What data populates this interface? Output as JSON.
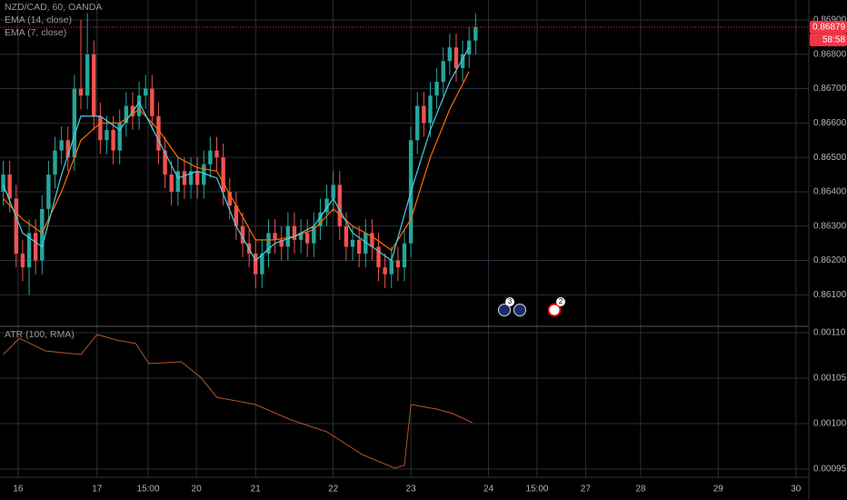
{
  "chart_data": {
    "type": "candlestick",
    "title": "NZD/CAD, 60, OANDA",
    "xlim": [
      0,
      250
    ],
    "xticks": [
      {
        "value": 5.6,
        "label": "16"
      },
      {
        "value": 30,
        "label": "17"
      },
      {
        "value": 45.8,
        "label": "15:00"
      },
      {
        "value": 60.7,
        "label": "20"
      },
      {
        "value": 79,
        "label": "21"
      },
      {
        "value": 103,
        "label": "22"
      },
      {
        "value": 127,
        "label": "23"
      },
      {
        "value": 151,
        "label": "24"
      },
      {
        "value": 166,
        "label": "15:00"
      },
      {
        "value": 181,
        "label": "27"
      },
      {
        "value": 198,
        "label": "28"
      },
      {
        "value": 222,
        "label": "29"
      },
      {
        "value": 246,
        "label": "30"
      }
    ],
    "ylim": [
      0.86011,
      0.86958
    ],
    "yticks": [
      {
        "value": 0.861,
        "label": "0.86100"
      },
      {
        "value": 0.862,
        "label": "0.86200"
      },
      {
        "value": 0.863,
        "label": "0.86300"
      },
      {
        "value": 0.864,
        "label": "0.86400"
      },
      {
        "value": 0.865,
        "label": "0.86500"
      },
      {
        "value": 0.866,
        "label": "0.86600"
      },
      {
        "value": 0.867,
        "label": "0.86700"
      },
      {
        "value": 0.868,
        "label": "0.86800"
      },
      {
        "value": 0.869,
        "label": "0.86900"
      }
    ],
    "grid": true,
    "candles": {
      "up_color": "#26a69a",
      "down_color": "#ef5350",
      "x": [
        1,
        3,
        5,
        7,
        9,
        11,
        13,
        15,
        17,
        19,
        21,
        23,
        25,
        27,
        29,
        31,
        33,
        35,
        37,
        39,
        41,
        43,
        45,
        47,
        49,
        51,
        53,
        55,
        57,
        59,
        61,
        63,
        65,
        67,
        69,
        71,
        73,
        75,
        77,
        79,
        81,
        83,
        85,
        87,
        89,
        91,
        93,
        95,
        97,
        99,
        101,
        103,
        105,
        107,
        109,
        111,
        113,
        115,
        117,
        119,
        121,
        123,
        125,
        127,
        129,
        131,
        133,
        135,
        137,
        139,
        141,
        143,
        145,
        147
      ],
      "open": [
        0.864,
        0.8645,
        0.8638,
        0.8622,
        0.8618,
        0.8628,
        0.862,
        0.8635,
        0.8645,
        0.8652,
        0.8655,
        0.865,
        0.867,
        0.8668,
        0.868,
        0.8662,
        0.8655,
        0.8658,
        0.8652,
        0.866,
        0.8665,
        0.8662,
        0.8668,
        0.867,
        0.8662,
        0.8652,
        0.8645,
        0.864,
        0.8646,
        0.8642,
        0.8646,
        0.8642,
        0.8648,
        0.8652,
        0.865,
        0.864,
        0.8636,
        0.863,
        0.8625,
        0.8622,
        0.8616,
        0.8622,
        0.8628,
        0.8626,
        0.8624,
        0.863,
        0.8626,
        0.8628,
        0.8625,
        0.863,
        0.8634,
        0.8638,
        0.8642,
        0.863,
        0.8624,
        0.8626,
        0.8622,
        0.8628,
        0.8624,
        0.8618,
        0.8616,
        0.862,
        0.8618,
        0.8625,
        0.8655,
        0.8665,
        0.866,
        0.8668,
        0.8672,
        0.8678,
        0.8682,
        0.8676,
        0.868,
        0.8684
      ],
      "high": [
        0.8649,
        0.8649,
        0.8642,
        0.8626,
        0.8632,
        0.8632,
        0.8639,
        0.8649,
        0.8656,
        0.8659,
        0.8659,
        0.8674,
        0.869,
        0.8692,
        0.8684,
        0.8666,
        0.8662,
        0.8662,
        0.8664,
        0.8669,
        0.8669,
        0.8672,
        0.8674,
        0.8674,
        0.8666,
        0.8656,
        0.8649,
        0.865,
        0.865,
        0.865,
        0.865,
        0.8652,
        0.8656,
        0.8656,
        0.8654,
        0.8644,
        0.864,
        0.8634,
        0.8629,
        0.8626,
        0.8626,
        0.8632,
        0.8632,
        0.863,
        0.8634,
        0.8634,
        0.8632,
        0.8632,
        0.8634,
        0.8638,
        0.8642,
        0.8646,
        0.8646,
        0.8634,
        0.863,
        0.863,
        0.8632,
        0.8632,
        0.8628,
        0.8622,
        0.8624,
        0.8624,
        0.8629,
        0.8659,
        0.8669,
        0.8669,
        0.8672,
        0.8676,
        0.8682,
        0.8686,
        0.8686,
        0.8684,
        0.8688,
        0.8692
      ],
      "low": [
        0.8636,
        0.8634,
        0.8618,
        0.8614,
        0.861,
        0.8616,
        0.8616,
        0.8631,
        0.8641,
        0.8648,
        0.8646,
        0.8646,
        0.8664,
        0.8664,
        0.8658,
        0.8651,
        0.8651,
        0.8648,
        0.8648,
        0.8656,
        0.8658,
        0.8658,
        0.8664,
        0.8658,
        0.8648,
        0.8641,
        0.8636,
        0.8636,
        0.8638,
        0.8638,
        0.8638,
        0.8638,
        0.8644,
        0.8646,
        0.8636,
        0.8632,
        0.8626,
        0.8621,
        0.8618,
        0.8612,
        0.8612,
        0.8618,
        0.8622,
        0.862,
        0.862,
        0.8622,
        0.8622,
        0.8621,
        0.8621,
        0.8626,
        0.863,
        0.8634,
        0.8626,
        0.862,
        0.862,
        0.8618,
        0.8618,
        0.862,
        0.8614,
        0.8612,
        0.8612,
        0.8614,
        0.8614,
        0.8621,
        0.8651,
        0.8656,
        0.8656,
        0.8664,
        0.8668,
        0.8674,
        0.8672,
        0.8672,
        0.8676,
        0.868
      ],
      "close": [
        0.8645,
        0.8638,
        0.8622,
        0.8618,
        0.8628,
        0.862,
        0.8635,
        0.8645,
        0.8652,
        0.8655,
        0.865,
        0.867,
        0.8668,
        0.868,
        0.8662,
        0.8655,
        0.8658,
        0.8652,
        0.866,
        0.8665,
        0.8662,
        0.8668,
        0.867,
        0.8662,
        0.8652,
        0.8645,
        0.864,
        0.8646,
        0.8642,
        0.8646,
        0.8642,
        0.8648,
        0.8652,
        0.865,
        0.864,
        0.8636,
        0.863,
        0.8625,
        0.8622,
        0.8616,
        0.8622,
        0.8628,
        0.8626,
        0.8624,
        0.863,
        0.8626,
        0.8628,
        0.8625,
        0.863,
        0.8634,
        0.8638,
        0.8642,
        0.863,
        0.8624,
        0.8626,
        0.8622,
        0.8628,
        0.8624,
        0.8618,
        0.8616,
        0.862,
        0.8618,
        0.8625,
        0.8655,
        0.8665,
        0.866,
        0.8668,
        0.8672,
        0.8678,
        0.8682,
        0.8676,
        0.868,
        0.8684,
        0.86879
      ]
    },
    "series": [
      {
        "name": "EMA (14, close)",
        "color": "#ff6d00",
        "x": [
          1,
          7,
          13,
          19,
          25,
          31,
          37,
          43,
          49,
          55,
          61,
          67,
          73,
          79,
          85,
          91,
          97,
          103,
          109,
          115,
          121,
          127,
          133,
          139,
          145
        ],
        "values": [
          0.8638,
          0.8632,
          0.8628,
          0.864,
          0.8655,
          0.866,
          0.866,
          0.8664,
          0.8658,
          0.865,
          0.8647,
          0.8646,
          0.8636,
          0.8626,
          0.8626,
          0.8627,
          0.8629,
          0.8635,
          0.863,
          0.8627,
          0.8623,
          0.8632,
          0.865,
          0.8664,
          0.8675
        ]
      },
      {
        "name": "EMA (7, close)",
        "color": "#4dd0e1",
        "x": [
          1,
          7,
          13,
          19,
          25,
          31,
          37,
          43,
          49,
          55,
          61,
          67,
          73,
          79,
          85,
          91,
          97,
          103,
          109,
          115,
          121,
          127,
          133,
          139,
          145
        ],
        "values": [
          0.8642,
          0.8628,
          0.8624,
          0.8645,
          0.8662,
          0.8662,
          0.8658,
          0.8666,
          0.8655,
          0.8644,
          0.8646,
          0.8644,
          0.863,
          0.862,
          0.8625,
          0.8627,
          0.863,
          0.8638,
          0.8628,
          0.8624,
          0.862,
          0.864,
          0.8658,
          0.8672,
          0.8682
        ]
      }
    ],
    "last_price": {
      "value": 0.86879,
      "countdown": "58:58",
      "color": "#f23645"
    },
    "events": [
      {
        "count": 3
      },
      {
        "count": 2
      }
    ],
    "indicator": {
      "type": "line",
      "name": "ATR (100, RMA)",
      "color": "#b4532a",
      "x": [
        1,
        6,
        14,
        25,
        30,
        36,
        42,
        46,
        56,
        62,
        67,
        79,
        90,
        101,
        112,
        122,
        125,
        127,
        135,
        140,
        146
      ],
      "values": [
        0.001076,
        0.001094,
        0.00108,
        0.001076,
        0.001098,
        0.001092,
        0.001088,
        0.001066,
        0.001068,
        0.001051,
        0.001029,
        0.001021,
        0.001004,
        0.000991,
        0.000966,
        0.000951,
        0.000954,
        0.001021,
        0.001016,
        0.001011,
        0.001001
      ],
      "ylim": [
        0.000941,
        0.001106
      ],
      "yticks": [
        {
          "value": 0.0011,
          "label": "0.00110"
        },
        {
          "value": 0.00105,
          "label": "0.00105"
        },
        {
          "value": 0.001,
          "label": "0.00100"
        },
        {
          "value": 0.00095,
          "label": "0.00095"
        }
      ]
    }
  }
}
